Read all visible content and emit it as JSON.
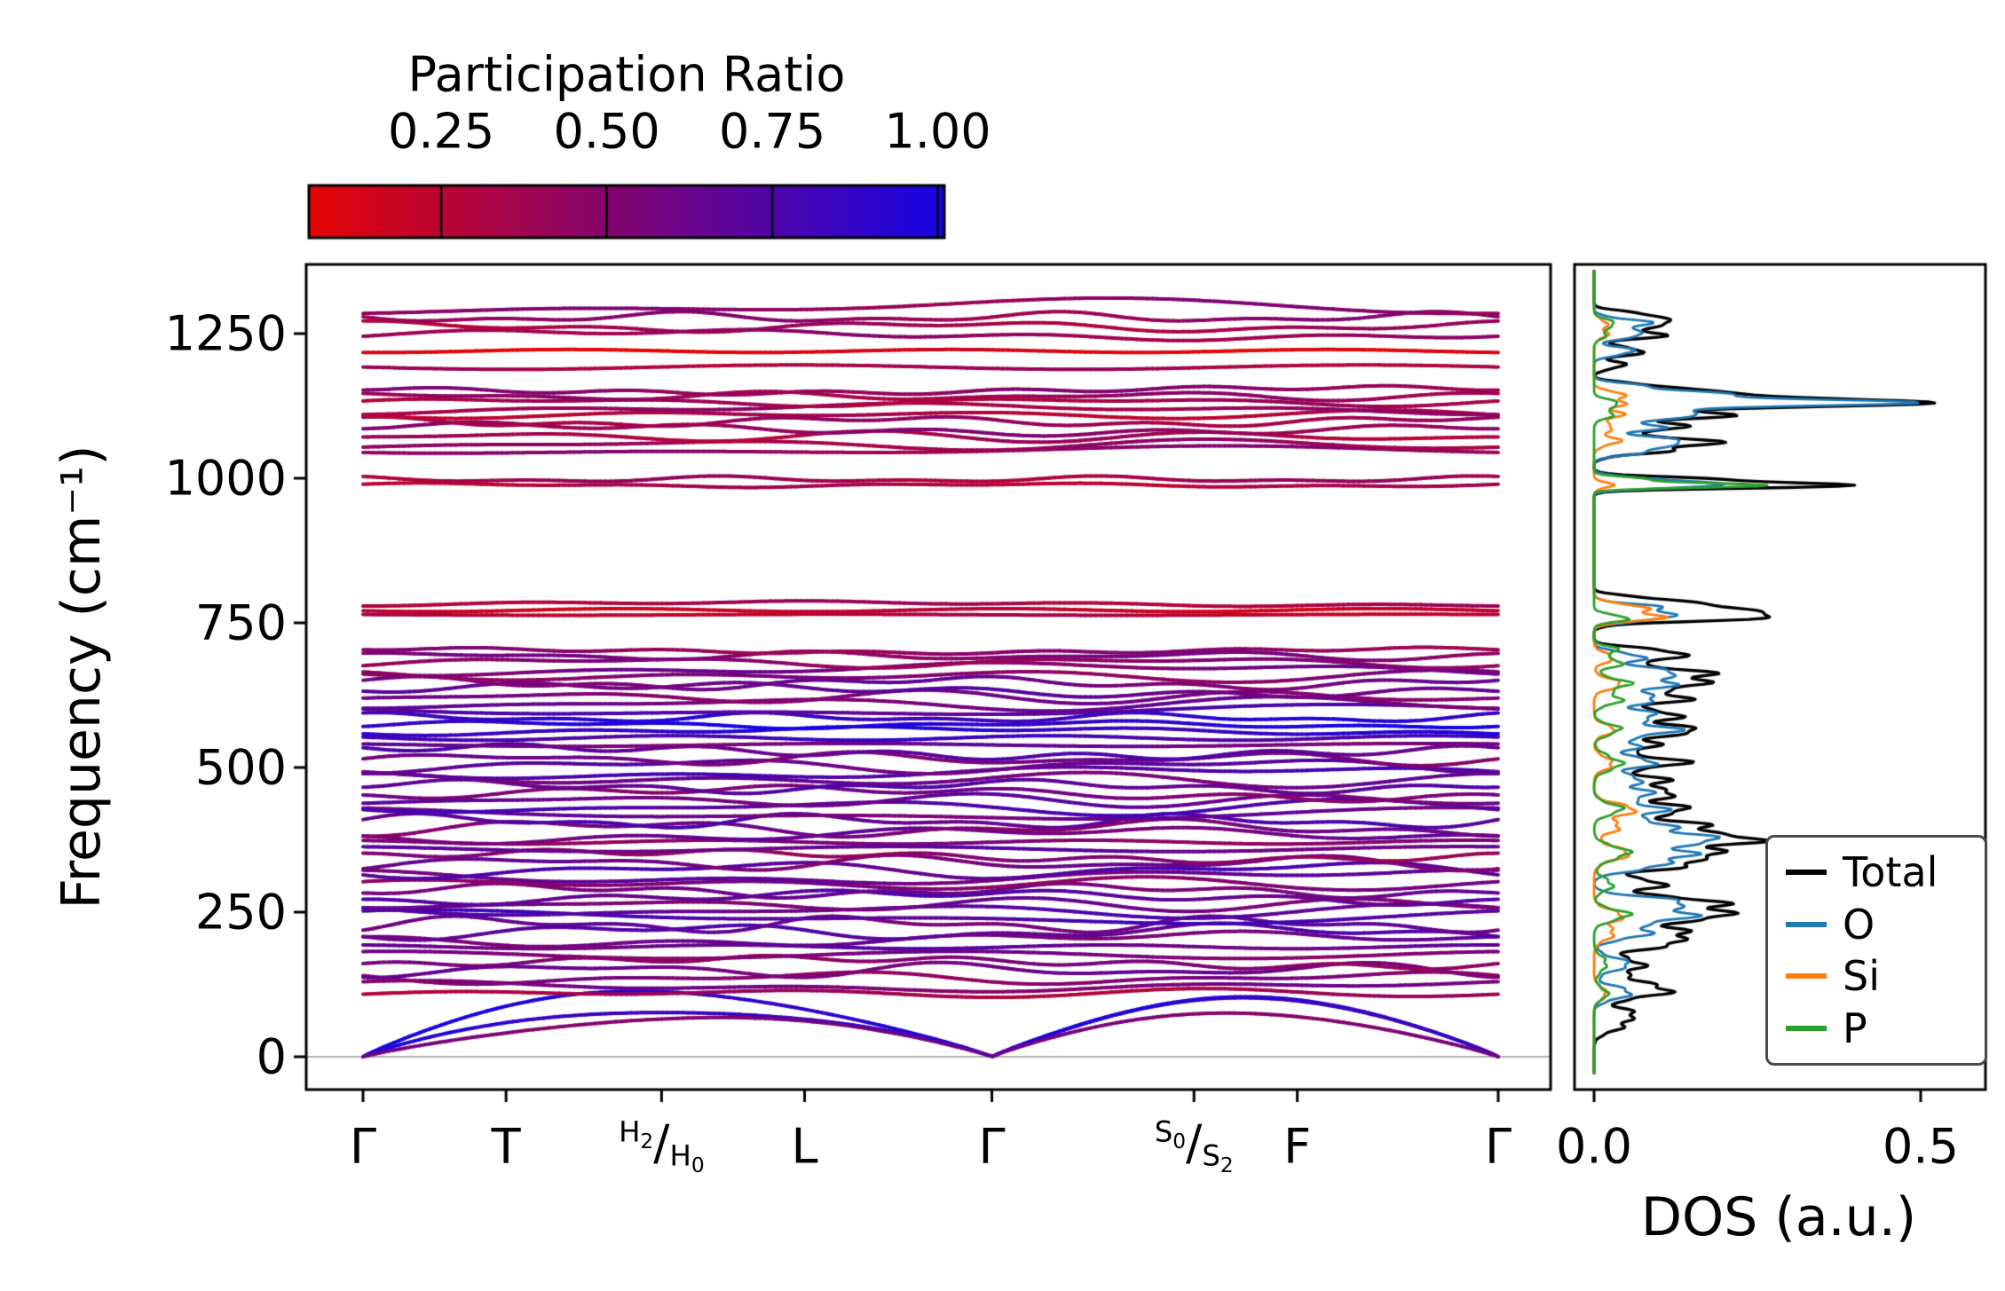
{
  "colorbar": {
    "title": "Participation Ratio",
    "tick_labels": [
      "0.25",
      "0.50",
      "0.75",
      "1.00"
    ],
    "tick_values": [
      0.25,
      0.5,
      0.75,
      1.0
    ]
  },
  "band_panel": {
    "ylabel": "Frequency (cm⁻¹)",
    "ytick_labels": [
      "0",
      "250",
      "500",
      "750",
      "1000",
      "1250"
    ],
    "ytick_values": [
      0,
      250,
      500,
      750,
      1000,
      1250
    ]
  },
  "dos_panel": {
    "xlabel": "DOS (a.u.)",
    "xtick_labels": [
      "0.0",
      "0.5"
    ],
    "xtick_values": [
      0,
      0.5
    ],
    "legend": [
      {
        "label": "Total",
        "color": "#000000"
      },
      {
        "label": "O",
        "color": "#1f77b4"
      },
      {
        "label": "Si",
        "color": "#ff7f0e"
      },
      {
        "label": "P",
        "color": "#2ca02c"
      }
    ]
  },
  "chart_data": {
    "type": "line",
    "ylabel": "Frequency (cm⁻¹)",
    "ylim": [
      -57,
      1370
    ],
    "yticks": [
      0,
      250,
      500,
      750,
      1000,
      1250
    ],
    "kpath": {
      "labels": [
        "Γ",
        "T",
        "H_2/H_0",
        "L",
        "Γ",
        "S_0/S_2",
        "F",
        "Γ"
      ],
      "positions": [
        0,
        0.126,
        0.263,
        0.389,
        0.554,
        0.732,
        0.823,
        1.0
      ]
    },
    "participation_ratio_colormap": {
      "vmin": 0.05,
      "vmax": 1.01,
      "low": "#e60404",
      "high": "#1604e6"
    },
    "acoustic_bands_columns": [
      "max_freq_cm1",
      "participation_ratio"
    ],
    "acoustic_bands": [
      [
        110,
        0.95
      ],
      [
        95,
        0.9
      ],
      [
        70,
        0.55
      ]
    ],
    "optical_bands_columns": [
      "center_cm1",
      "dispersion_amp_cm1",
      "participation_ratio"
    ],
    "optical_bands": [
      [
        110,
        8,
        0.35
      ],
      [
        122,
        10,
        0.55
      ],
      [
        136,
        12,
        0.5
      ],
      [
        150,
        14,
        0.6
      ],
      [
        163,
        12,
        0.5
      ],
      [
        176,
        14,
        0.55
      ],
      [
        190,
        16,
        0.65
      ],
      [
        203,
        14,
        0.6
      ],
      [
        216,
        15,
        0.7
      ],
      [
        229,
        16,
        0.62
      ],
      [
        241,
        14,
        0.75
      ],
      [
        252,
        13,
        0.68
      ],
      [
        263,
        12,
        0.58
      ],
      [
        275,
        14,
        0.7
      ],
      [
        287,
        13,
        0.6
      ],
      [
        299,
        12,
        0.52
      ],
      [
        311,
        14,
        0.63
      ],
      [
        323,
        16,
        0.72
      ],
      [
        335,
        14,
        0.58
      ],
      [
        347,
        12,
        0.47
      ],
      [
        359,
        14,
        0.66
      ],
      [
        371,
        12,
        0.5
      ],
      [
        383,
        15,
        0.62
      ],
      [
        395,
        16,
        0.55
      ],
      [
        407,
        14,
        0.7
      ],
      [
        419,
        12,
        0.6
      ],
      [
        431,
        15,
        0.74
      ],
      [
        443,
        12,
        0.64
      ],
      [
        455,
        14,
        0.55
      ],
      [
        467,
        12,
        0.7
      ],
      [
        479,
        14,
        0.6
      ],
      [
        491,
        12,
        0.74
      ],
      [
        503,
        14,
        0.66
      ],
      [
        515,
        12,
        0.56
      ],
      [
        527,
        14,
        0.7
      ],
      [
        539,
        12,
        0.6
      ],
      [
        551,
        10,
        0.8
      ],
      [
        563,
        8,
        0.9
      ],
      [
        574,
        7,
        0.95
      ],
      [
        586,
        9,
        0.88
      ],
      [
        598,
        11,
        0.72
      ],
      [
        610,
        13,
        0.6
      ],
      [
        622,
        12,
        0.55
      ],
      [
        634,
        14,
        0.65
      ],
      [
        646,
        12,
        0.6
      ],
      [
        658,
        11,
        0.5
      ],
      [
        670,
        12,
        0.56
      ],
      [
        682,
        10,
        0.46
      ],
      [
        693,
        8,
        0.52
      ],
      [
        702,
        6,
        0.45
      ],
      [
        764,
        4,
        0.28
      ],
      [
        772,
        5,
        0.2
      ],
      [
        783,
        5,
        0.34
      ],
      [
        988,
        4,
        0.3
      ],
      [
        998,
        6,
        0.36
      ],
      [
        1048,
        8,
        0.45
      ],
      [
        1058,
        10,
        0.4
      ],
      [
        1072,
        10,
        0.34
      ],
      [
        1085,
        12,
        0.46
      ],
      [
        1098,
        10,
        0.4
      ],
      [
        1110,
        8,
        0.3
      ],
      [
        1120,
        10,
        0.4
      ],
      [
        1132,
        8,
        0.34
      ],
      [
        1142,
        8,
        0.4
      ],
      [
        1152,
        8,
        0.46
      ],
      [
        1192,
        12,
        0.34
      ],
      [
        1220,
        4,
        0.08
      ],
      [
        1248,
        10,
        0.42
      ],
      [
        1262,
        10,
        0.36
      ],
      [
        1278,
        10,
        0.44
      ],
      [
        1296,
        16,
        0.46
      ]
    ],
    "dos": {
      "xlabel": "DOS (a.u.)",
      "xlim": [
        -0.03,
        0.6
      ],
      "xticks": [
        0,
        0.5
      ],
      "peaks_columns": [
        "freq_cm1",
        "height_au",
        "width_cm1"
      ],
      "series": [
        {
          "name": "Total",
          "color": "#000000",
          "peaks": [
            [
              55,
              0.04,
              12
            ],
            [
              75,
              0.05,
              10
            ],
            [
              110,
              0.1,
              10
            ],
            [
              130,
              0.06,
              10
            ],
            [
              160,
              0.07,
              12
            ],
            [
              195,
              0.1,
              10
            ],
            [
              215,
              0.13,
              10
            ],
            [
              245,
              0.21,
              10
            ],
            [
              268,
              0.17,
              9
            ],
            [
              298,
              0.1,
              10
            ],
            [
              330,
              0.13,
              9
            ],
            [
              352,
              0.19,
              9
            ],
            [
              375,
              0.23,
              9
            ],
            [
              398,
              0.17,
              10
            ],
            [
              428,
              0.15,
              9
            ],
            [
              455,
              0.12,
              9
            ],
            [
              478,
              0.1,
              9
            ],
            [
              508,
              0.14,
              9
            ],
            [
              538,
              0.1,
              9
            ],
            [
              565,
              0.16,
              9
            ],
            [
              590,
              0.12,
              9
            ],
            [
              618,
              0.14,
              9
            ],
            [
              645,
              0.17,
              9
            ],
            [
              665,
              0.15,
              8
            ],
            [
              690,
              0.12,
              8
            ],
            [
              703,
              0.07,
              6
            ],
            [
              760,
              0.27,
              7
            ],
            [
              776,
              0.19,
              7
            ],
            [
              790,
              0.1,
              6
            ],
            [
              988,
              0.37,
              5
            ],
            [
              999,
              0.14,
              5
            ],
            [
              1048,
              0.11,
              7
            ],
            [
              1064,
              0.17,
              7
            ],
            [
              1088,
              0.14,
              7
            ],
            [
              1110,
              0.21,
              7
            ],
            [
              1130,
              0.52,
              6
            ],
            [
              1145,
              0.22,
              6
            ],
            [
              1158,
              0.1,
              6
            ],
            [
              1195,
              0.05,
              6
            ],
            [
              1220,
              0.08,
              7
            ],
            [
              1248,
              0.1,
              7
            ],
            [
              1268,
              0.12,
              7
            ],
            [
              1283,
              0.07,
              6
            ]
          ]
        },
        {
          "name": "O",
          "color": "#1f77b4",
          "peaks": [
            [
              110,
              0.06,
              10
            ],
            [
              160,
              0.05,
              12
            ],
            [
              215,
              0.09,
              10
            ],
            [
              245,
              0.15,
              10
            ],
            [
              268,
              0.12,
              9
            ],
            [
              330,
              0.1,
              9
            ],
            [
              352,
              0.14,
              9
            ],
            [
              375,
              0.17,
              9
            ],
            [
              398,
              0.12,
              10
            ],
            [
              428,
              0.11,
              9
            ],
            [
              455,
              0.08,
              9
            ],
            [
              478,
              0.07,
              9
            ],
            [
              508,
              0.1,
              9
            ],
            [
              538,
              0.07,
              9
            ],
            [
              565,
              0.12,
              9
            ],
            [
              590,
              0.09,
              9
            ],
            [
              618,
              0.1,
              9
            ],
            [
              645,
              0.12,
              9
            ],
            [
              665,
              0.11,
              8
            ],
            [
              690,
              0.08,
              8
            ],
            [
              760,
              0.12,
              7
            ],
            [
              776,
              0.09,
              7
            ],
            [
              988,
              0.2,
              5
            ],
            [
              999,
              0.07,
              5
            ],
            [
              1048,
              0.09,
              7
            ],
            [
              1064,
              0.13,
              7
            ],
            [
              1088,
              0.11,
              7
            ],
            [
              1110,
              0.16,
              7
            ],
            [
              1130,
              0.48,
              6
            ],
            [
              1145,
              0.17,
              6
            ],
            [
              1158,
              0.08,
              6
            ],
            [
              1220,
              0.06,
              7
            ],
            [
              1248,
              0.07,
              7
            ],
            [
              1268,
              0.09,
              7
            ]
          ]
        },
        {
          "name": "Si",
          "color": "#ff7f0e",
          "peaks": [
            [
              110,
              0.02,
              10
            ],
            [
              215,
              0.03,
              12
            ],
            [
              245,
              0.04,
              10
            ],
            [
              352,
              0.05,
              12
            ],
            [
              398,
              0.04,
              10
            ],
            [
              428,
              0.06,
              10
            ],
            [
              508,
              0.03,
              10
            ],
            [
              565,
              0.03,
              9
            ],
            [
              645,
              0.04,
              9
            ],
            [
              690,
              0.03,
              8
            ],
            [
              760,
              0.1,
              7
            ],
            [
              776,
              0.07,
              7
            ],
            [
              988,
              0.03,
              5
            ],
            [
              1064,
              0.04,
              7
            ],
            [
              1088,
              0.03,
              7
            ],
            [
              1110,
              0.04,
              7
            ],
            [
              1130,
              0.05,
              6
            ],
            [
              1145,
              0.04,
              6
            ],
            [
              1248,
              0.02,
              7
            ],
            [
              1268,
              0.02,
              7
            ]
          ]
        },
        {
          "name": "P",
          "color": "#2ca02c",
          "peaks": [
            [
              110,
              0.02,
              10
            ],
            [
              160,
              0.02,
              12
            ],
            [
              245,
              0.05,
              10
            ],
            [
              298,
              0.03,
              10
            ],
            [
              352,
              0.05,
              12
            ],
            [
              428,
              0.04,
              10
            ],
            [
              508,
              0.04,
              12
            ],
            [
              565,
              0.04,
              9
            ],
            [
              618,
              0.04,
              9
            ],
            [
              645,
              0.05,
              9
            ],
            [
              680,
              0.04,
              8
            ],
            [
              703,
              0.04,
              6
            ],
            [
              758,
              0.05,
              6
            ],
            [
              988,
              0.28,
              4
            ],
            [
              999,
              0.07,
              4
            ],
            [
              1110,
              0.03,
              7
            ],
            [
              1130,
              0.04,
              6
            ],
            [
              1248,
              0.02,
              7
            ],
            [
              1268,
              0.03,
              7
            ]
          ]
        }
      ]
    }
  }
}
